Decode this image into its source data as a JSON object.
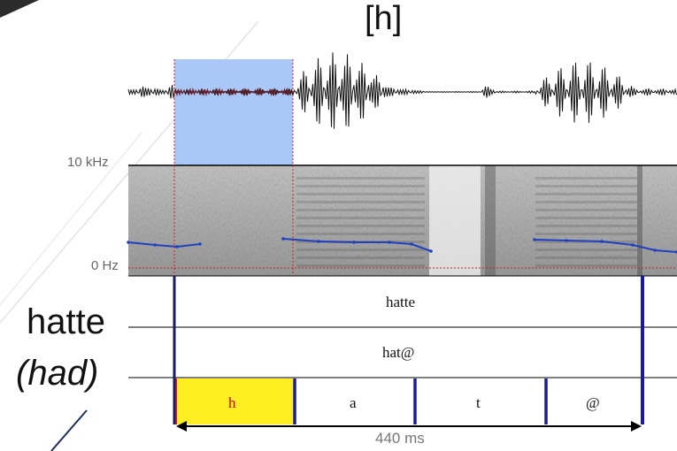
{
  "title": "[h]",
  "word_label": "hatte",
  "gloss_label": "(had)",
  "freq_axis": {
    "top": "10 kHz",
    "bottom": "0 Hz"
  },
  "tiers": {
    "word": "hatte",
    "phonemic": "hat@",
    "segments": [
      {
        "label": "h",
        "highlight": true
      },
      {
        "label": "a",
        "highlight": false
      },
      {
        "label": "t",
        "highlight": false
      },
      {
        "label": "@",
        "highlight": false
      }
    ]
  },
  "duration_label": "440 ms",
  "colors": {
    "highlight_fill": "#a9c8f7",
    "segment_highlight": "#ffee22",
    "segment_text_highlight": "#cc0000",
    "boundary": "#1a1aa0",
    "pitch": "#2040c0",
    "dotted_guide": "#cc2222"
  }
}
